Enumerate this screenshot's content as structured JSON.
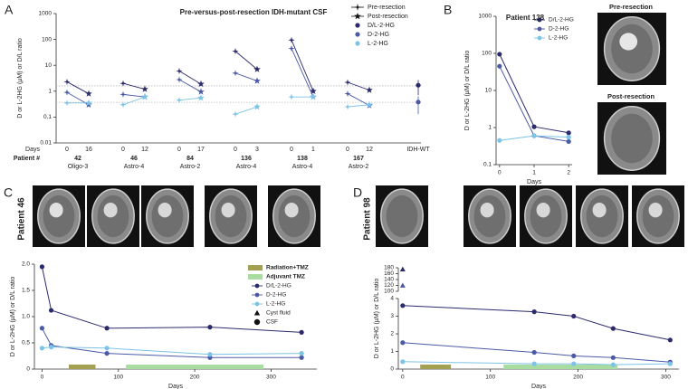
{
  "chart_data": [
    {
      "type": "paired",
      "panel": "A",
      "title": "Pre-versus-post-resection IDH-mutant CSF",
      "y_label": "D or L-2HG (µM) or D/L ratio",
      "log_scale": true,
      "ylim": [
        0.01,
        1000
      ],
      "yticks": [
        0.01,
        0.1,
        1,
        10,
        100,
        1000
      ],
      "days_label": "Days",
      "patient_label": "Patient #",
      "groups": [
        {
          "patient": "42",
          "diagnosis": "Oligo-3",
          "days": [
            0,
            16
          ]
        },
        {
          "patient": "46",
          "diagnosis": "Astro-4",
          "days": [
            0,
            12
          ]
        },
        {
          "patient": "84",
          "diagnosis": "Astro-2",
          "days": [
            0,
            17
          ]
        },
        {
          "patient": "136",
          "diagnosis": "Astro-4",
          "days": [
            0,
            3
          ]
        },
        {
          "patient": "138",
          "diagnosis": "Astro-4",
          "days": [
            0,
            1
          ]
        },
        {
          "patient": "167",
          "diagnosis": "Astro-2",
          "days": [
            0,
            12
          ]
        }
      ],
      "markers": [
        {
          "name": "Pre-resection",
          "color": "#111111"
        },
        {
          "name": "Post-resection",
          "color": "#111111"
        }
      ],
      "series": [
        {
          "name": "D/L-2-HG",
          "color": "#2b2a6b",
          "values": [
            [
              2.3,
              0.8
            ],
            [
              2.0,
              1.2
            ],
            [
              6,
              1.9
            ],
            [
              35,
              7
            ],
            [
              95,
              1
            ],
            [
              2.2,
              1.1
            ]
          ]
        },
        {
          "name": "D-2-HG",
          "color": "#4b5aa6",
          "values": [
            [
              0.9,
              0.3
            ],
            [
              0.75,
              0.6
            ],
            [
              2.8,
              0.95
            ],
            [
              5,
              2.5
            ],
            [
              45,
              0.6
            ],
            [
              0.8,
              0.28
            ]
          ]
        },
        {
          "name": "L-2-HG",
          "color": "#7cc3e6",
          "values": [
            [
              0.35,
              0.35
            ],
            [
              0.3,
              0.6
            ],
            [
              0.45,
              0.55
            ],
            [
              0.13,
              0.25
            ],
            [
              0.6,
              0.6
            ],
            [
              0.25,
              0.3
            ]
          ]
        }
      ],
      "reference_lines": [
        1.6,
        0.37
      ],
      "control": {
        "label": "IDH-WT",
        "values": [
          1.7,
          0.38
        ],
        "errors": [
          1.0,
          0.25
        ]
      }
    },
    {
      "type": "line",
      "panel": "B",
      "title": "Patient 138",
      "y_label": "D or L-2HG (µM) or D/L ratio",
      "x_label": "Days",
      "log_scale": true,
      "ylim": [
        0.1,
        1000
      ],
      "yticks": [
        0.1,
        1,
        10,
        100,
        1000
      ],
      "xlim": [
        -0.1,
        2.1
      ],
      "xticks": [
        0,
        1,
        2
      ],
      "x": [
        0,
        1,
        2
      ],
      "legend": "upper right",
      "series": [
        {
          "name": "D/L-2-HG",
          "color": "#2b2a6b",
          "values": [
            95,
            1.05,
            0.72
          ]
        },
        {
          "name": "D-2-HG",
          "color": "#4b5aa6",
          "values": [
            45,
            0.6,
            0.42
          ]
        },
        {
          "name": "L-2-HG",
          "color": "#7cc3e6",
          "values": [
            0.45,
            0.6,
            0.55
          ]
        }
      ],
      "images": [
        "Pre-resection",
        "Post-resection"
      ]
    },
    {
      "type": "line",
      "panel": "C",
      "title": "Patient 46",
      "y_label": "D or L-2HG (µM) or D/L ratio",
      "x_label": "Days",
      "ylim": [
        0,
        2
      ],
      "yticks": [
        0,
        0.5,
        {
          "value": 1,
          "label": "1.0"
        },
        1.5,
        {
          "value": 2,
          "label": "2.0"
        }
      ],
      "xlim": [
        -10,
        360
      ],
      "xticks": [
        0,
        100,
        200,
        300
      ],
      "x": [
        0,
        12,
        85,
        220,
        340
      ],
      "legend": "upper right",
      "treatments": [
        {
          "name": "Radiation+TMZ",
          "color": "#a3a050",
          "range": [
            35,
            70
          ]
        },
        {
          "name": "Adjuvant TMZ",
          "color": "#a8dca0",
          "range": [
            110,
            290
          ]
        }
      ],
      "series": [
        {
          "name": "D/L-2-HG",
          "color": "#2b2a6b",
          "values": [
            1.95,
            1.12,
            0.78,
            0.8,
            0.7
          ]
        },
        {
          "name": "D-2-HG",
          "color": "#4b5aa6",
          "values": [
            0.78,
            0.45,
            0.3,
            0.22,
            0.22
          ]
        },
        {
          "name": "L-2-HG",
          "color": "#7cc3e6",
          "values": [
            0.4,
            0.42,
            0.4,
            0.28,
            0.3
          ]
        }
      ],
      "samples": [
        {
          "name": "Cyst fluid",
          "shape": "triangle"
        },
        {
          "name": "CSF",
          "shape": "circle"
        }
      ]
    },
    {
      "type": "line",
      "panel": "D",
      "title": "Patient 98",
      "y_label": "D or L-2HG (µM) or D/L ratio",
      "x_label": "Days",
      "ylim": [
        0,
        4
      ],
      "yticks": [
        0,
        1,
        2,
        3,
        4
      ],
      "ylim_upper": [
        100,
        180
      ],
      "yticks_upper": [
        100,
        120,
        140,
        160,
        180
      ],
      "xlim": [
        -5,
        315
      ],
      "xticks": [
        0,
        100,
        200,
        300
      ],
      "x": [
        0,
        150,
        195,
        240,
        305
      ],
      "treatments": [
        {
          "color": "#a3a050",
          "range": [
            20,
            55
          ]
        },
        {
          "color": "#a8dca0",
          "range": [
            115,
            245
          ]
        }
      ],
      "series": [
        {
          "name": "D/L-2-HG",
          "color": "#2b2a6b",
          "values": [
            3.6,
            3.25,
            3.0,
            2.3,
            1.65
          ]
        },
        {
          "name": "D-2-HG",
          "color": "#4b5aa6",
          "values": [
            1.5,
            0.95,
            0.75,
            0.65,
            0.4
          ]
        },
        {
          "name": "L-2-HG",
          "color": "#7cc3e6",
          "values": [
            0.42,
            0.3,
            0.3,
            0.25,
            0.3
          ]
        }
      ],
      "cyst": {
        "x": 0,
        "values": [
          175,
          120
        ]
      }
    }
  ]
}
